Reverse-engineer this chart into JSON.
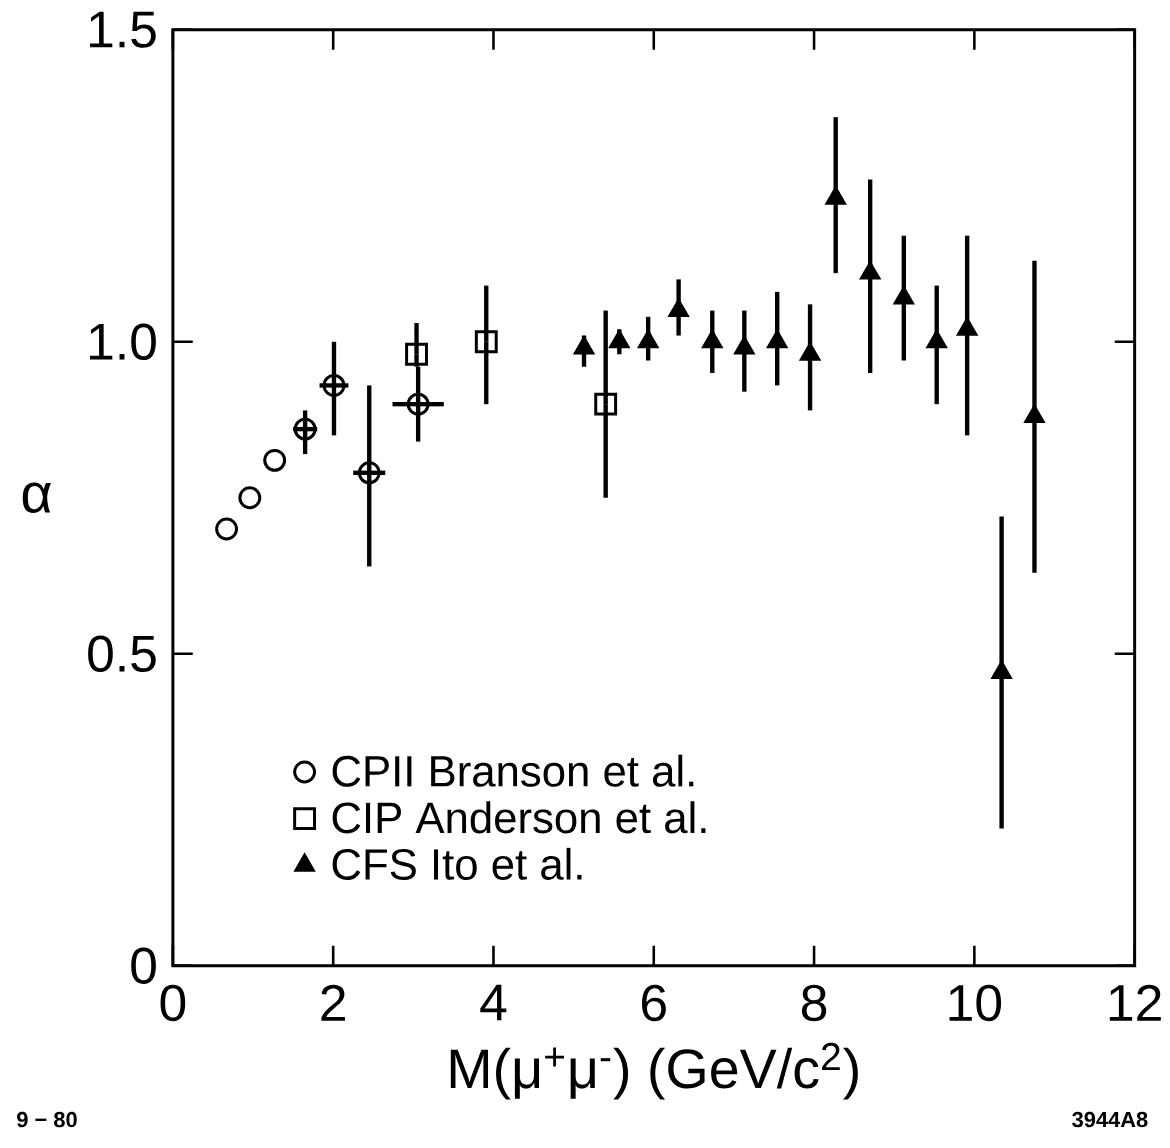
{
  "chart_data": {
    "type": "scatter",
    "xlabel": "M(μ$^{+}$μ$^{-}$)   (GeV/c$^{2}$)",
    "ylabel": "α",
    "xlim": [
      0,
      12
    ],
    "ylim": [
      0,
      1.5
    ],
    "xticks": [
      0,
      2,
      4,
      6,
      8,
      10,
      12
    ],
    "yticks": [
      0,
      0.5,
      {
        "value": 1.0,
        "label": "1.0"
      },
      1.5
    ],
    "legend": "bottom left",
    "annotations": [
      "9 − 80",
      "3944A8"
    ],
    "series": [
      {
        "name": "CPII  Branson et al.",
        "color": "#000000",
        "marker": "circle",
        "x": [
          0.67,
          0.96,
          1.27,
          1.65,
          2.01,
          2.45,
          3.06
        ],
        "values": [
          0.7,
          0.75,
          0.81,
          0.86,
          0.93,
          0.79,
          0.9
        ],
        "errors": [
          null,
          null,
          null,
          [
            0.82,
            0.89
          ],
          [
            0.85,
            1.0
          ],
          [
            0.64,
            0.93
          ],
          [
            0.84,
            0.96
          ]
        ],
        "xerrors": [
          null,
          null,
          null,
          0.15,
          0.18,
          0.2,
          0.32
        ]
      },
      {
        "name": "CIP  Anderson et al.",
        "color": "#000000",
        "marker": "square",
        "x": [
          3.04,
          3.91,
          5.4
        ],
        "values": [
          0.98,
          1.0,
          0.9
        ],
        "errors": [
          [
            0.96,
            1.03
          ],
          [
            0.9,
            1.09
          ],
          [
            0.75,
            1.05
          ]
        ]
      },
      {
        "name": "CFS  Ito et al.",
        "color": "#000000",
        "marker": "triangle",
        "x": [
          5.13,
          5.57,
          5.93,
          6.31,
          6.73,
          7.13,
          7.54,
          7.95,
          8.27,
          8.7,
          9.12,
          9.53,
          9.91,
          10.34,
          10.75
        ],
        "values": [
          0.99,
          1.0,
          1.0,
          1.05,
          1.0,
          0.99,
          1.0,
          0.98,
          1.23,
          1.11,
          1.07,
          1.0,
          1.02,
          0.47,
          0.88
        ],
        "errors": [
          [
            0.96,
            1.01
          ],
          [
            0.98,
            1.02
          ],
          [
            0.97,
            1.04
          ],
          [
            1.01,
            1.1
          ],
          [
            0.95,
            1.05
          ],
          [
            0.92,
            1.05
          ],
          [
            0.93,
            1.08
          ],
          [
            0.89,
            1.06
          ],
          [
            1.11,
            1.36
          ],
          [
            0.95,
            1.26
          ],
          [
            0.97,
            1.17
          ],
          [
            0.9,
            1.09
          ],
          [
            0.85,
            1.17
          ],
          [
            0.22,
            0.72
          ],
          [
            0.63,
            1.13
          ]
        ]
      }
    ]
  }
}
